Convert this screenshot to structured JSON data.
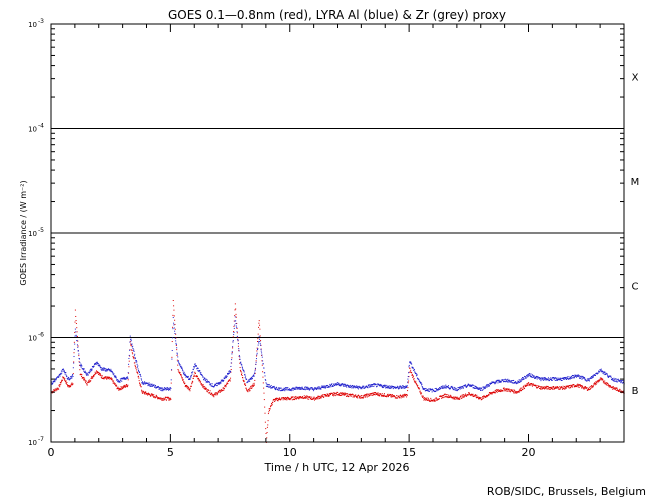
{
  "chart_data": {
    "type": "scatter",
    "title": "GOES 0.1—0.8nm (red), LYRA Al (blue) & Zr (grey) proxy",
    "xlabel": "Time / h UTC, 12 Apr 2026",
    "ylabel": "GOES Irradiance / (W m⁻²)",
    "xlim": [
      0,
      24
    ],
    "ylim": [
      1e-07,
      0.001
    ],
    "y_scale": "log",
    "x_ticks": [
      0,
      5,
      10,
      15,
      20
    ],
    "x_tick_labels": [
      "0",
      "5",
      "10",
      "15",
      "20"
    ],
    "y_ticks": [
      1e-07,
      1e-06,
      1e-05,
      0.0001,
      0.001
    ],
    "y_tick_labels": [
      {
        "base": "10",
        "exp": "-7"
      },
      {
        "base": "10",
        "exp": "-6"
      },
      {
        "base": "10",
        "exp": "-5"
      },
      {
        "base": "10",
        "exp": "-4"
      },
      {
        "base": "10",
        "exp": "-3"
      }
    ],
    "flare_class_lines": [
      1e-06,
      1e-05,
      0.0001
    ],
    "flare_classes": [
      {
        "label": "B",
        "y": 3.16e-07
      },
      {
        "label": "C",
        "y": 3.16e-06
      },
      {
        "label": "M",
        "y": 3.16e-05
      },
      {
        "label": "X",
        "y": 0.000316
      }
    ],
    "series": [
      {
        "color": "#dd0000",
        "x": [
          0.0,
          0.3,
          0.5,
          0.7,
          0.9,
          1.0,
          1.2,
          1.5,
          1.9,
          2.1,
          2.5,
          2.8,
          3.2,
          3.3,
          3.5,
          3.8,
          4.2,
          4.6,
          5.0,
          5.1,
          5.3,
          5.6,
          5.8,
          6.0,
          6.4,
          6.8,
          7.2,
          7.5,
          7.7,
          7.9,
          8.2,
          8.5,
          8.7,
          8.9,
          9.0,
          9.1,
          9.3,
          9.6,
          10.0,
          10.5,
          11.0,
          11.5,
          12.0,
          12.5,
          13.0,
          13.5,
          14.0,
          14.5,
          14.9,
          15.0,
          15.3,
          15.6,
          16.0,
          16.5,
          17.0,
          17.5,
          18.0,
          18.5,
          19.0,
          19.5,
          20.0,
          20.5,
          21.0,
          21.5,
          22.0,
          22.5,
          23.0,
          23.5,
          24.0
        ],
        "y": [
          3e-07,
          3.3e-07,
          4.2e-07,
          3.4e-07,
          3.6e-07,
          1.8e-06,
          4.5e-07,
          3.6e-07,
          4.8e-07,
          4.2e-07,
          4e-07,
          3.2e-07,
          3.5e-07,
          9e-07,
          5.5e-07,
          3e-07,
          2.8e-07,
          2.6e-07,
          2.6e-07,
          2.3e-06,
          5e-07,
          3.5e-07,
          3.2e-07,
          4.5e-07,
          3.3e-07,
          2.8e-07,
          3.2e-07,
          4e-07,
          2.1e-06,
          5e-07,
          3e-07,
          3.6e-07,
          1.5e-06,
          3e-07,
          1e-07,
          2e-07,
          2.5e-07,
          2.6e-07,
          2.6e-07,
          2.7e-07,
          2.6e-07,
          2.8e-07,
          2.9e-07,
          2.8e-07,
          2.7e-07,
          2.9e-07,
          2.8e-07,
          2.7e-07,
          2.8e-07,
          5e-07,
          3.5e-07,
          2.6e-07,
          2.5e-07,
          2.8e-07,
          2.6e-07,
          2.9e-07,
          2.6e-07,
          3e-07,
          3.2e-07,
          3e-07,
          3.6e-07,
          3.3e-07,
          3.3e-07,
          3.3e-07,
          3.5e-07,
          3.2e-07,
          4e-07,
          3.3e-07,
          3e-07
        ]
      },
      {
        "color": "#2020cc",
        "x": [
          0.0,
          0.3,
          0.5,
          0.7,
          0.9,
          1.0,
          1.2,
          1.5,
          1.9,
          2.1,
          2.5,
          2.8,
          3.2,
          3.3,
          3.5,
          3.8,
          4.2,
          4.6,
          5.0,
          5.1,
          5.3,
          5.6,
          5.8,
          6.0,
          6.4,
          6.8,
          7.2,
          7.5,
          7.7,
          7.9,
          8.2,
          8.5,
          8.7,
          9.0,
          9.3,
          9.6,
          10.0,
          10.5,
          11.0,
          11.5,
          12.0,
          12.5,
          13.0,
          13.5,
          14.0,
          14.5,
          14.9,
          15.0,
          15.3,
          15.6,
          16.0,
          16.5,
          17.0,
          17.5,
          18.0,
          18.5,
          19.0,
          19.5,
          20.0,
          20.5,
          21.0,
          21.5,
          22.0,
          22.5,
          23.0,
          23.5,
          24.0
        ],
        "y": [
          3.6e-07,
          4.2e-07,
          5e-07,
          4e-07,
          4.3e-07,
          1.2e-06,
          5.5e-07,
          4.4e-07,
          5.8e-07,
          5e-07,
          4.8e-07,
          3.8e-07,
          4.2e-07,
          1e-06,
          6.5e-07,
          3.7e-07,
          3.5e-07,
          3.2e-07,
          3.2e-07,
          1.5e-06,
          6e-07,
          4.3e-07,
          4e-07,
          5.5e-07,
          4e-07,
          3.4e-07,
          3.9e-07,
          4.8e-07,
          1.6e-06,
          6e-07,
          3.7e-07,
          4.4e-07,
          1e-06,
          3.5e-07,
          3.3e-07,
          3.2e-07,
          3.2e-07,
          3.3e-07,
          3.2e-07,
          3.4e-07,
          3.6e-07,
          3.4e-07,
          3.3e-07,
          3.5e-07,
          3.4e-07,
          3.3e-07,
          3.4e-07,
          6e-07,
          4.3e-07,
          3.2e-07,
          3.1e-07,
          3.4e-07,
          3.2e-07,
          3.5e-07,
          3.2e-07,
          3.7e-07,
          3.9e-07,
          3.7e-07,
          4.4e-07,
          4e-07,
          4e-07,
          4e-07,
          4.3e-07,
          3.9e-07,
          4.9e-07,
          4e-07,
          3.7e-07
        ]
      }
    ]
  },
  "credit": "ROB/SIDC, Brussels, Belgium"
}
